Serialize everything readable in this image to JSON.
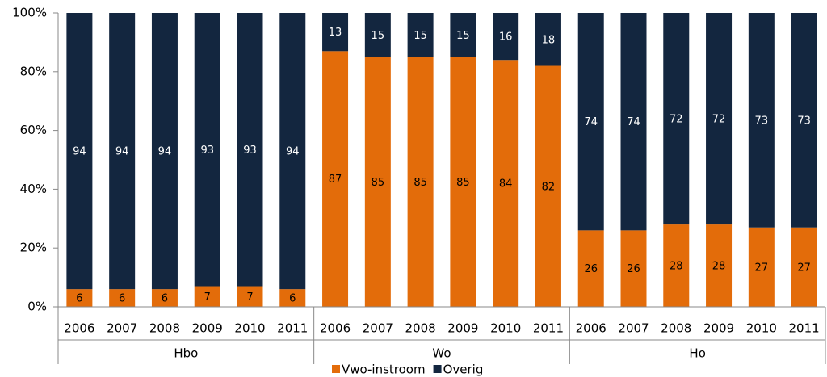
{
  "chart_data": {
    "type": "stacked-bar",
    "categories": [
      "2006",
      "2007",
      "2008",
      "2009",
      "2010",
      "2011",
      "2006",
      "2007",
      "2008",
      "2009",
      "2010",
      "2011",
      "2006",
      "2007",
      "2008",
      "2009",
      "2010",
      "2011"
    ],
    "groups": [
      "Hbo",
      "Wo",
      "Ho"
    ],
    "series": [
      {
        "name": "Vwo-instroom",
        "color": "#e36c0a",
        "values": [
          6,
          6,
          6,
          7,
          7,
          6,
          87,
          85,
          85,
          85,
          84,
          82,
          26,
          26,
          28,
          28,
          27,
          27
        ]
      },
      {
        "name": "Overig",
        "color": "#13263f",
        "values": [
          94,
          94,
          94,
          93,
          93,
          94,
          13,
          15,
          15,
          15,
          16,
          18,
          74,
          74,
          72,
          72,
          73,
          73
        ]
      }
    ],
    "ylim": [
      0,
      100
    ],
    "yticks": [
      {
        "value": 0,
        "label": "0%"
      },
      {
        "value": 20,
        "label": "20%"
      },
      {
        "value": 40,
        "label": "40%"
      },
      {
        "value": 60,
        "label": "60%"
      },
      {
        "value": 80,
        "label": "80%"
      },
      {
        "value": 100,
        "label": "100%"
      }
    ],
    "legend": "bottom"
  }
}
